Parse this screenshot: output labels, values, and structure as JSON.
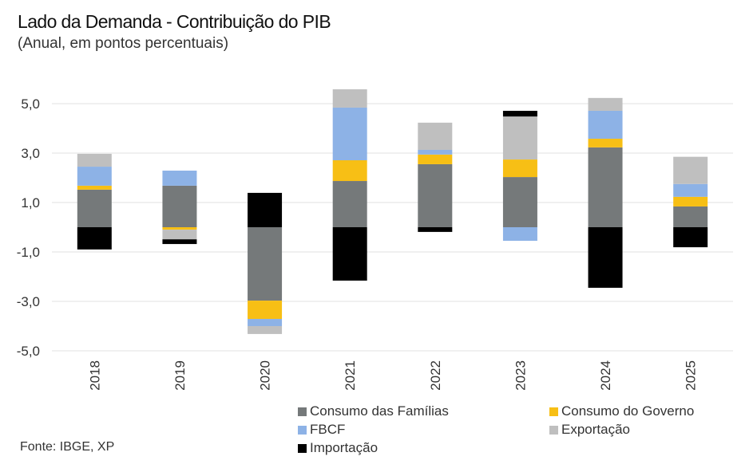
{
  "header": {
    "title": "Lado da Demanda - Contribuição do PIB",
    "subtitle": "(Anual, em pontos percentuais)"
  },
  "footer": {
    "source": "Fonte: IBGE, XP"
  },
  "chart_data": {
    "type": "bar",
    "stacked": true,
    "title": "Lado da Demanda - Contribuição do PIB",
    "subtitle": "(Anual, em pontos percentuais)",
    "xlabel": "",
    "ylabel": "",
    "categories": [
      "2018",
      "2019",
      "2020",
      "2021",
      "2022",
      "2023",
      "2024",
      "2025"
    ],
    "ylim": [
      -5.0,
      5.0
    ],
    "yticks": [
      5.0,
      3.0,
      1.0,
      -1.0,
      -3.0,
      -5.0
    ],
    "ytick_labels": [
      "5,0",
      "3,0",
      "1,0",
      "-1,0",
      "-3,0",
      "-5,0"
    ],
    "grid": true,
    "legend_position": "bottom-right",
    "series": [
      {
        "name": "Consumo das Famílias",
        "color": "#75797A",
        "values": [
          1.52,
          1.68,
          -2.97,
          1.87,
          2.55,
          2.03,
          3.23,
          0.84
        ]
      },
      {
        "name": "Consumo do Governo",
        "color": "#F7BF15",
        "values": [
          0.16,
          -0.1,
          -0.74,
          0.84,
          0.39,
          0.71,
          0.35,
          0.39
        ]
      },
      {
        "name": "FBCF",
        "color": "#8DB2E6",
        "values": [
          0.77,
          0.61,
          -0.29,
          2.13,
          0.19,
          -0.55,
          1.13,
          0.52
        ]
      },
      {
        "name": "Exportação",
        "color": "#BFBFBF",
        "values": [
          0.52,
          -0.39,
          -0.32,
          0.74,
          1.1,
          1.74,
          0.52,
          1.1
        ]
      },
      {
        "name": "Importação",
        "color": "#000000",
        "values": [
          -0.9,
          -0.19,
          1.39,
          -2.16,
          -0.19,
          0.23,
          -2.45,
          -0.81
        ]
      }
    ]
  }
}
